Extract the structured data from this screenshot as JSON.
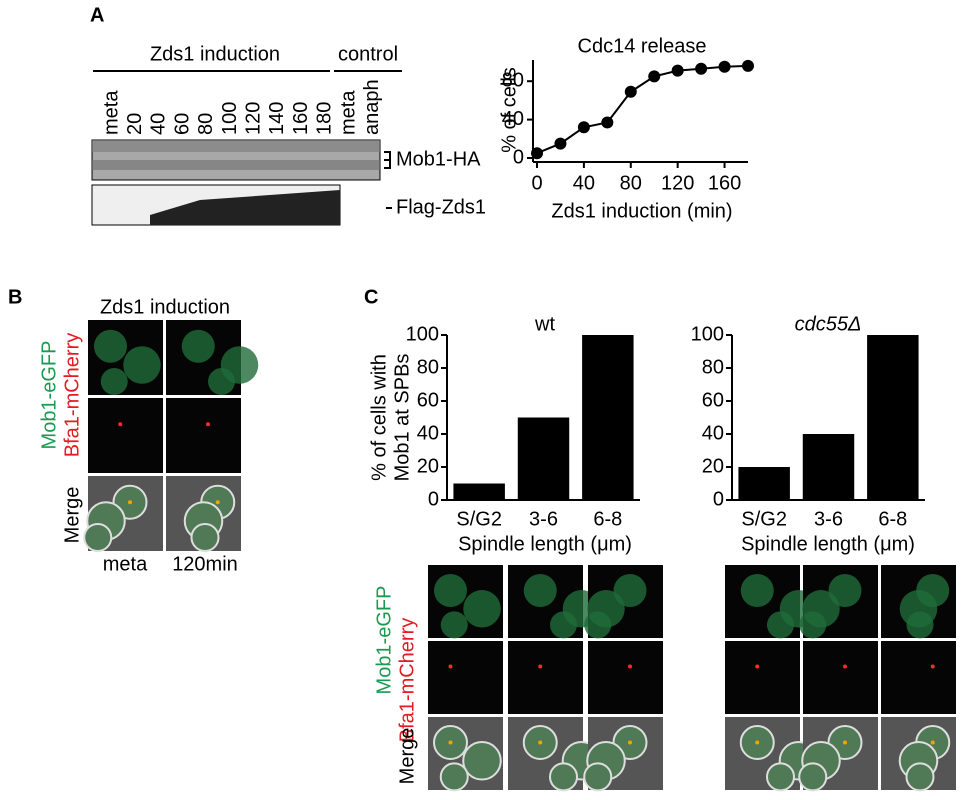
{
  "panel_labels": [
    "A",
    "B",
    "C"
  ],
  "blot": {
    "induction_label": "Zds1 induction",
    "control_label": "control",
    "lanes": [
      "meta",
      "20",
      "40",
      "60",
      "80",
      "100",
      "120",
      "140",
      "160",
      "180",
      "meta",
      "anaph"
    ],
    "bands": [
      "Mob1-HA",
      "Flag-Zds1"
    ]
  },
  "panel_b": {
    "title": "Zds1 induction",
    "channels": [
      "Mob1-eGFP",
      "Bfa1-mCherry",
      "Merge"
    ],
    "columns": [
      "meta",
      "120min"
    ]
  },
  "panel_c": {
    "channels": [
      "Mob1-eGFP",
      "Bfa1-mCherry",
      "Merge"
    ]
  },
  "chart_data": [
    {
      "type": "line",
      "title": "Cdc14 release",
      "x_label": "Zds1 induction (min)",
      "y_label": "% of cells",
      "x": [
        0,
        20,
        40,
        60,
        80,
        100,
        120,
        140,
        160,
        180
      ],
      "values": [
        5,
        15,
        32,
        37,
        69,
        85,
        91,
        93,
        95,
        96
      ],
      "color": "#000000",
      "xlim": [
        0,
        180
      ],
      "ylim": [
        0,
        100
      ],
      "xticks": [
        0,
        40,
        80,
        120,
        160
      ],
      "yticks": [
        0,
        40,
        80
      ]
    },
    {
      "type": "bar",
      "title": "wt",
      "x_label": "Spindle length (μm)",
      "y_label": [
        "% of cells with",
        "Mob1 at SPBs"
      ],
      "categories": [
        "S/G2",
        "3-6",
        "6-8"
      ],
      "values": [
        10,
        50,
        100
      ],
      "color": "#000000",
      "ylim": [
        0,
        100
      ],
      "yticks": [
        0,
        20,
        40,
        60,
        80,
        100
      ]
    },
    {
      "type": "bar",
      "title": "cdc55Δ",
      "x_label": "Spindle length (μm)",
      "categories": [
        "S/G2",
        "3-6",
        "6-8"
      ],
      "values": [
        20,
        40,
        100
      ],
      "color": "#000000",
      "ylim": [
        0,
        100
      ],
      "yticks": [
        0,
        20,
        40,
        60,
        80,
        100
      ]
    }
  ]
}
